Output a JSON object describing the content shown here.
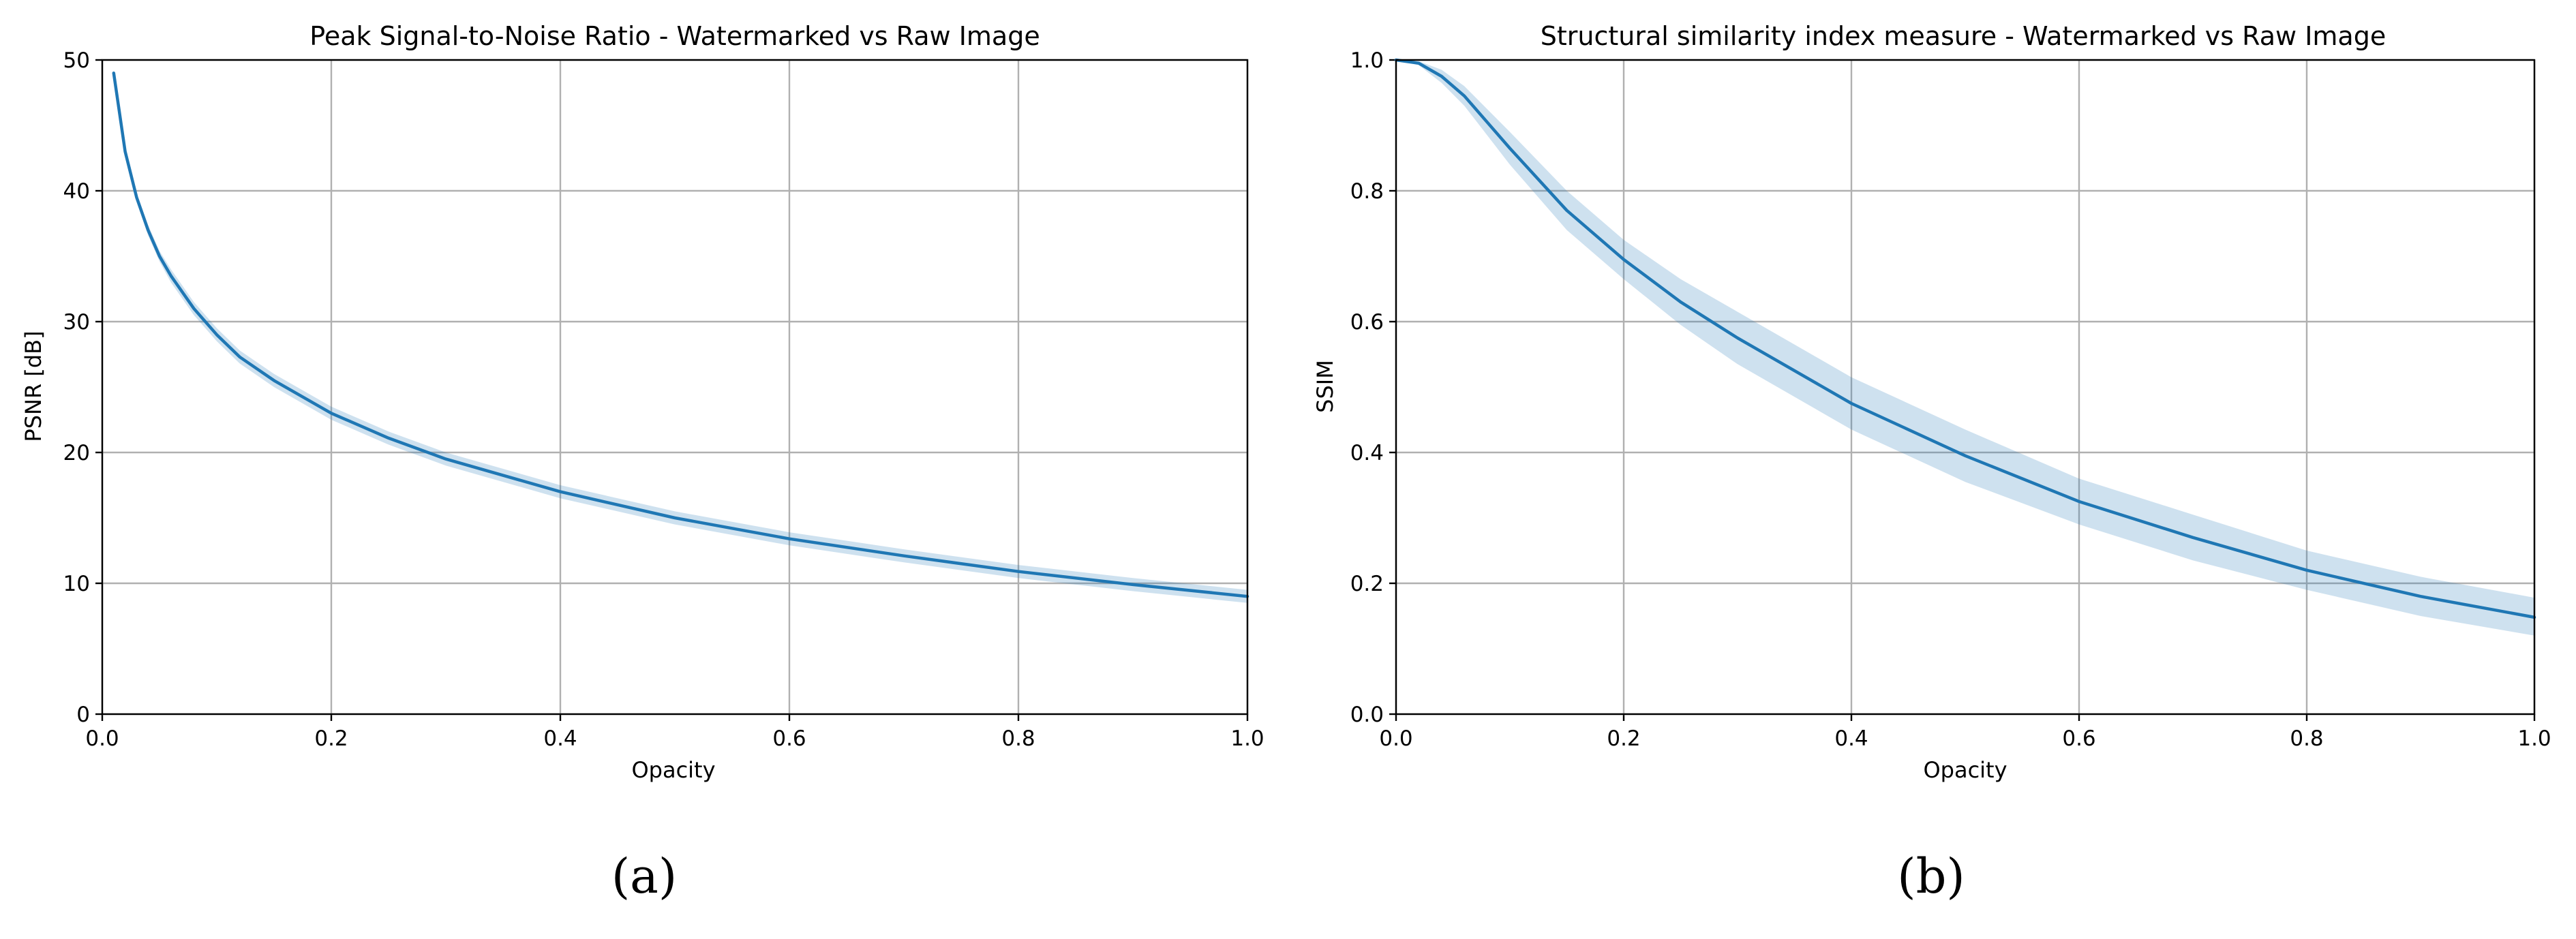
{
  "chart_data": [
    {
      "type": "line",
      "title": "Peak Signal-to-Noise Ratio - Watermarked vs Raw Image",
      "xlabel": "Opacity",
      "ylabel": "PSNR [dB]",
      "xlim": [
        0.0,
        1.0
      ],
      "ylim": [
        0,
        50
      ],
      "xticks": [
        "0.0",
        "0.2",
        "0.4",
        "0.6",
        "0.8",
        "1.0"
      ],
      "yticks": [
        "0",
        "10",
        "20",
        "30",
        "40",
        "50"
      ],
      "grid": true,
      "series": [
        {
          "color": "#1f77b4",
          "x": [
            0.01,
            0.02,
            0.03,
            0.04,
            0.05,
            0.06,
            0.08,
            0.1,
            0.12,
            0.15,
            0.2,
            0.25,
            0.3,
            0.4,
            0.5,
            0.6,
            0.7,
            0.8,
            0.9,
            1.0
          ],
          "y": [
            49.0,
            43.0,
            39.5,
            37.0,
            35.0,
            33.5,
            31.0,
            29.0,
            27.3,
            25.5,
            23.0,
            21.1,
            19.5,
            17.0,
            15.0,
            13.4,
            12.1,
            10.9,
            9.9,
            9.0
          ],
          "y_lower": [
            48.8,
            42.8,
            39.2,
            36.6,
            34.6,
            33.0,
            30.5,
            28.5,
            26.8,
            25.0,
            22.5,
            20.6,
            19.0,
            16.5,
            14.5,
            12.9,
            11.6,
            10.4,
            9.4,
            8.5
          ],
          "y_upper": [
            49.2,
            43.2,
            39.8,
            37.4,
            35.4,
            34.0,
            31.5,
            29.5,
            27.8,
            26.0,
            23.5,
            21.6,
            20.0,
            17.5,
            15.5,
            13.9,
            12.6,
            11.4,
            10.4,
            9.5
          ]
        }
      ]
    },
    {
      "type": "line",
      "title": "Structural similarity index measure -  Watermarked vs Raw Image",
      "xlabel": "Opacity",
      "ylabel": "SSIM",
      "xlim": [
        0.0,
        1.0
      ],
      "ylim": [
        0.0,
        1.0
      ],
      "xticks": [
        "0.0",
        "0.2",
        "0.4",
        "0.6",
        "0.8",
        "1.0"
      ],
      "yticks": [
        "0.0",
        "0.2",
        "0.4",
        "0.6",
        "0.8",
        "1.0"
      ],
      "grid": true,
      "series": [
        {
          "color": "#1f77b4",
          "x": [
            0.0,
            0.02,
            0.04,
            0.06,
            0.08,
            0.1,
            0.15,
            0.2,
            0.25,
            0.3,
            0.4,
            0.5,
            0.6,
            0.7,
            0.8,
            0.9,
            1.0
          ],
          "y": [
            1.0,
            0.995,
            0.975,
            0.945,
            0.905,
            0.865,
            0.77,
            0.695,
            0.63,
            0.575,
            0.475,
            0.395,
            0.325,
            0.27,
            0.22,
            0.18,
            0.148
          ],
          "y_lower": [
            1.0,
            0.992,
            0.965,
            0.93,
            0.885,
            0.84,
            0.74,
            0.665,
            0.595,
            0.535,
            0.435,
            0.355,
            0.29,
            0.235,
            0.19,
            0.15,
            0.12
          ],
          "y_upper": [
            1.0,
            0.998,
            0.985,
            0.96,
            0.925,
            0.89,
            0.8,
            0.725,
            0.665,
            0.615,
            0.515,
            0.435,
            0.36,
            0.305,
            0.25,
            0.21,
            0.178
          ]
        }
      ]
    }
  ],
  "captions": [
    "(a)",
    "(b)"
  ]
}
